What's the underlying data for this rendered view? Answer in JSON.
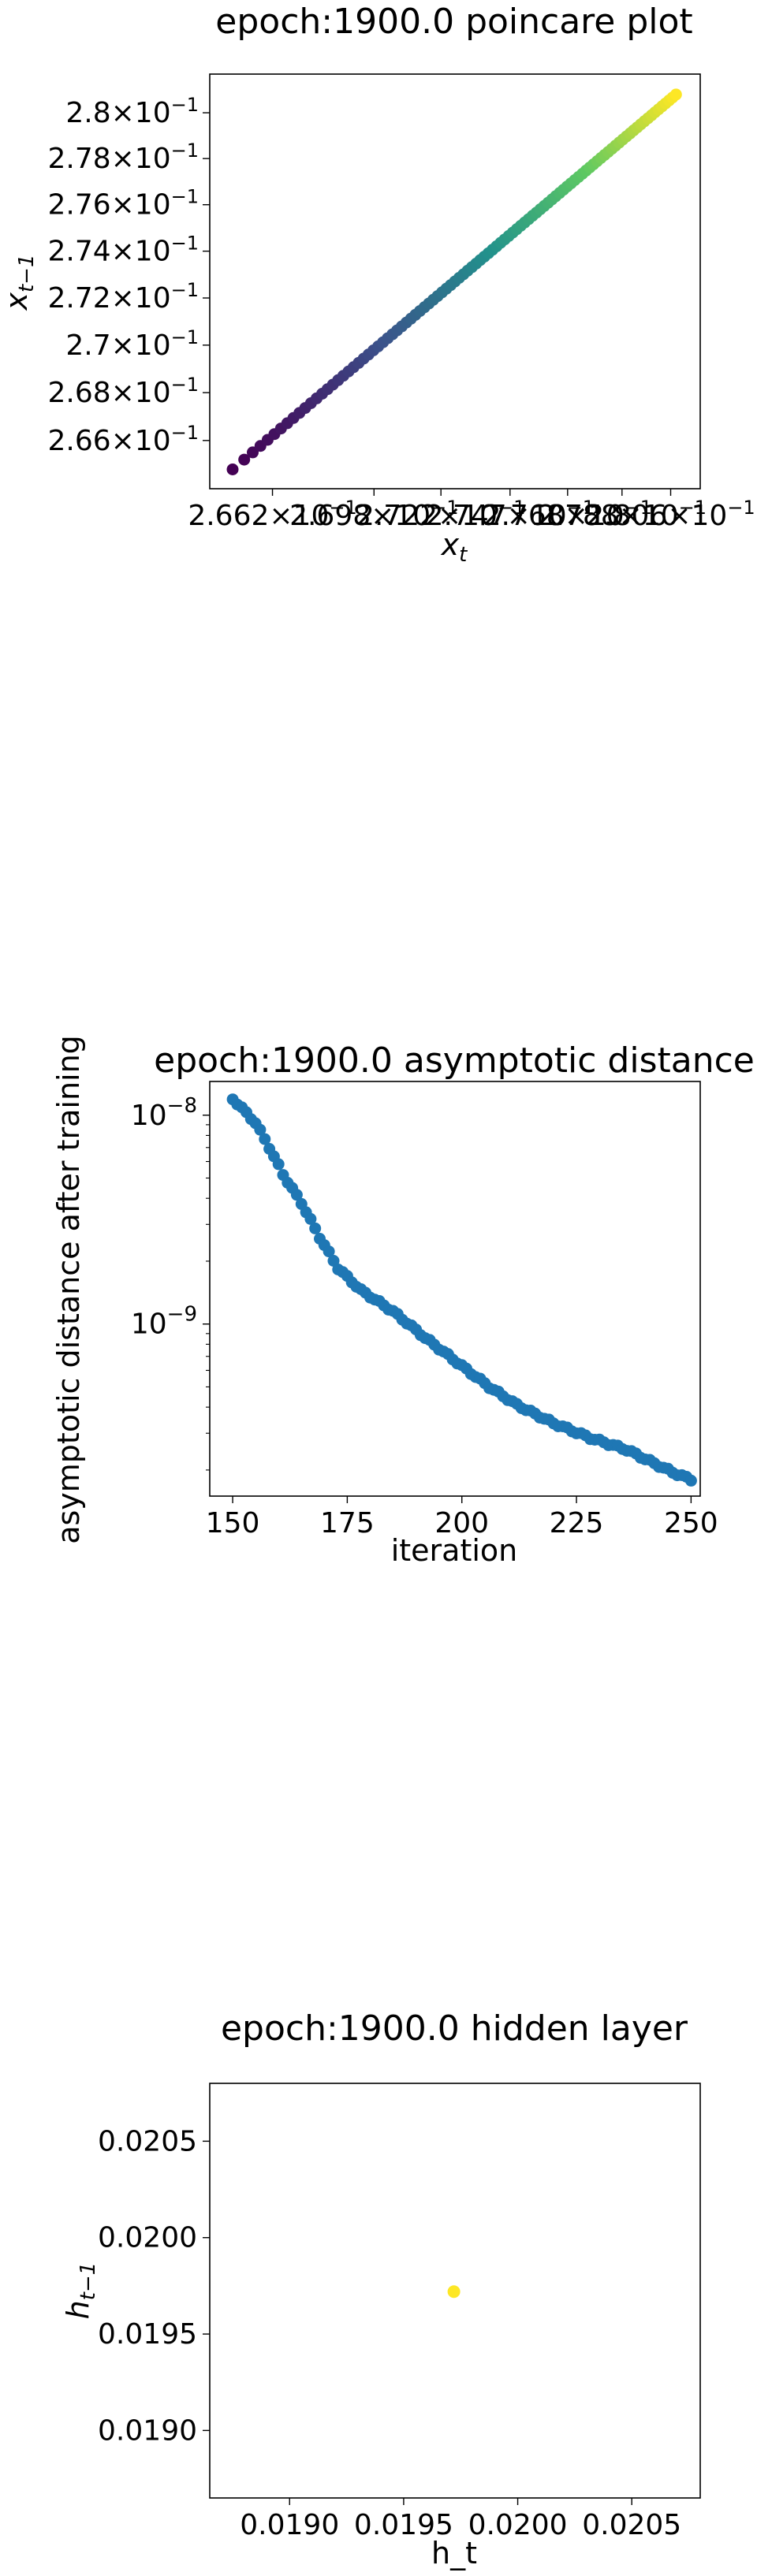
{
  "chart_data": [
    {
      "type": "scatter",
      "title": "epoch:1900.0 poincare plot",
      "xlabel_base": "x",
      "xlabel_sub": "t",
      "ylabel_base": "x",
      "ylabel_sub": "t−1",
      "scale": "log",
      "colormap": [
        "#440154",
        "#3b528b",
        "#21918c",
        "#5ec962",
        "#fde725"
      ],
      "y_ticks": [
        {
          "value": 0.266,
          "mant": "2.66",
          "exp": "−1"
        },
        {
          "value": 0.268,
          "mant": "2.68",
          "exp": "−1"
        },
        {
          "value": 0.27,
          "mant": "2.7",
          "exp": "−1"
        },
        {
          "value": 0.272,
          "mant": "2.72",
          "exp": "−1"
        },
        {
          "value": 0.274,
          "mant": "2.74",
          "exp": "−1"
        },
        {
          "value": 0.276,
          "mant": "2.76",
          "exp": "−1"
        },
        {
          "value": 0.278,
          "mant": "2.78",
          "exp": "−1"
        },
        {
          "value": 0.28,
          "mant": "2.8",
          "exp": "−1"
        }
      ],
      "x_ticks": [
        {
          "value": 0.2662,
          "mant": "2.662",
          "exp": "−1"
        },
        {
          "value": 0.2698,
          "mant": "2.698",
          "exp": "−1"
        },
        {
          "value": 0.2722,
          "mant": "2.722",
          "exp": "−1"
        },
        {
          "value": 0.2747,
          "mant": "2.747",
          "exp": "−1"
        },
        {
          "value": 0.2768,
          "mant": "2.768",
          "exp": "−1"
        },
        {
          "value": 0.2788,
          "mant": "2.788",
          "exp": "−1"
        },
        {
          "value": 0.2806,
          "mant": "2.806",
          "exp": "−1"
        }
      ],
      "xlim": [
        0.264,
        0.2817
      ],
      "ylim": [
        0.264,
        0.2817
      ],
      "x_range": [
        0.2648,
        0.2808
      ],
      "point_count": 100
    },
    {
      "type": "scatter",
      "title": "epoch:1900.0 asymptotic distance",
      "xlabel": "iteration",
      "ylabel": "asymptotic distance after training",
      "scale_y": "log",
      "color": "#1f77b4",
      "x_ticks": [
        150,
        175,
        200,
        225,
        250
      ],
      "y_ticks": [
        {
          "value": 1e-08,
          "mant": "10",
          "exp": "−8"
        },
        {
          "value": 1e-09,
          "mant": "10",
          "exp": "−9"
        }
      ],
      "xlim": [
        145,
        252
      ],
      "ylim": [
        1.5e-10,
        1.45e-08
      ],
      "x": [
        150,
        250
      ],
      "y_points": [
        [
          150,
          1.2e-08
        ],
        [
          152,
          1.08e-08
        ],
        [
          155,
          9.2e-09
        ],
        [
          158,
          7e-09
        ],
        [
          161,
          5.2e-09
        ],
        [
          165,
          3.8e-09
        ],
        [
          169,
          2.6e-09
        ],
        [
          173,
          1.85e-09
        ],
        [
          178,
          1.45e-09
        ],
        [
          185,
          1.15e-09
        ],
        [
          192,
          8.6e-10
        ],
        [
          200,
          6.3e-10
        ],
        [
          206,
          5e-10
        ],
        [
          212,
          4.1e-10
        ],
        [
          220,
          3.35e-10
        ],
        [
          228,
          2.85e-10
        ],
        [
          236,
          2.5e-10
        ],
        [
          242,
          2.15e-10
        ],
        [
          246,
          1.95e-10
        ],
        [
          250,
          1.8e-10
        ]
      ]
    },
    {
      "type": "scatter",
      "title": "epoch:1900.0 hidden layer",
      "xlabel": "h_t",
      "ylabel_base": "h",
      "ylabel_sub": "t−1",
      "color": "#fde725",
      "x_ticks": [
        "0.0190",
        "0.0195",
        "0.0200",
        "0.0205"
      ],
      "y_ticks": [
        "0.0190",
        "0.0195",
        "0.0200",
        "0.0205"
      ],
      "xlim": [
        0.01865,
        0.0208
      ],
      "ylim": [
        0.01865,
        0.0208
      ],
      "points": [
        [
          0.01972,
          0.01972
        ]
      ]
    }
  ]
}
